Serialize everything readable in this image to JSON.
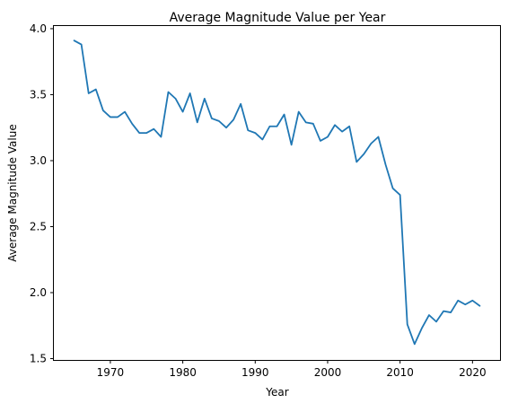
{
  "chart_data": {
    "type": "line",
    "title": "Average Magnitude Value per Year",
    "xlabel": "Year",
    "ylabel": "Average Magnitude Value",
    "xlim": [
      1962.2,
      2023.8
    ],
    "ylim": [
      1.49,
      4.02
    ],
    "x_ticks": [
      1970,
      1980,
      1990,
      2000,
      2010,
      2020
    ],
    "y_ticks": [
      1.5,
      2.0,
      2.5,
      3.0,
      3.5,
      4.0
    ],
    "x_tick_labels": [
      "1970",
      "1980",
      "1990",
      "2000",
      "2010",
      "2020"
    ],
    "y_tick_labels": [
      "1.5",
      "2.0",
      "2.5",
      "3.0",
      "3.5",
      "4.0"
    ],
    "grid": false,
    "legend": "none",
    "series": [
      {
        "color": "#1f77b4",
        "x": [
          1965,
          1966,
          1967,
          1968,
          1969,
          1970,
          1971,
          1972,
          1973,
          1974,
          1975,
          1976,
          1977,
          1978,
          1979,
          1980,
          1981,
          1982,
          1983,
          1984,
          1985,
          1986,
          1987,
          1988,
          1989,
          1990,
          1991,
          1992,
          1993,
          1994,
          1995,
          1996,
          1997,
          1998,
          1999,
          2000,
          2001,
          2002,
          2003,
          2004,
          2005,
          2006,
          2007,
          2008,
          2009,
          2010,
          2011,
          2012,
          2013,
          2014,
          2015,
          2016,
          2017,
          2018,
          2019,
          2020,
          2021
        ],
        "values": [
          3.91,
          3.88,
          3.51,
          3.54,
          3.38,
          3.33,
          3.33,
          3.37,
          3.28,
          3.21,
          3.21,
          3.24,
          3.18,
          3.52,
          3.47,
          3.37,
          3.51,
          3.29,
          3.47,
          3.32,
          3.3,
          3.25,
          3.31,
          3.43,
          3.23,
          3.21,
          3.16,
          3.26,
          3.26,
          3.35,
          3.12,
          3.37,
          3.29,
          3.28,
          3.15,
          3.18,
          3.27,
          3.22,
          3.26,
          2.99,
          3.05,
          3.13,
          3.18,
          2.97,
          2.79,
          2.74,
          1.76,
          1.61,
          1.73,
          1.83,
          1.78,
          1.86,
          1.85,
          1.94,
          1.91,
          1.94,
          1.9
        ]
      }
    ]
  }
}
